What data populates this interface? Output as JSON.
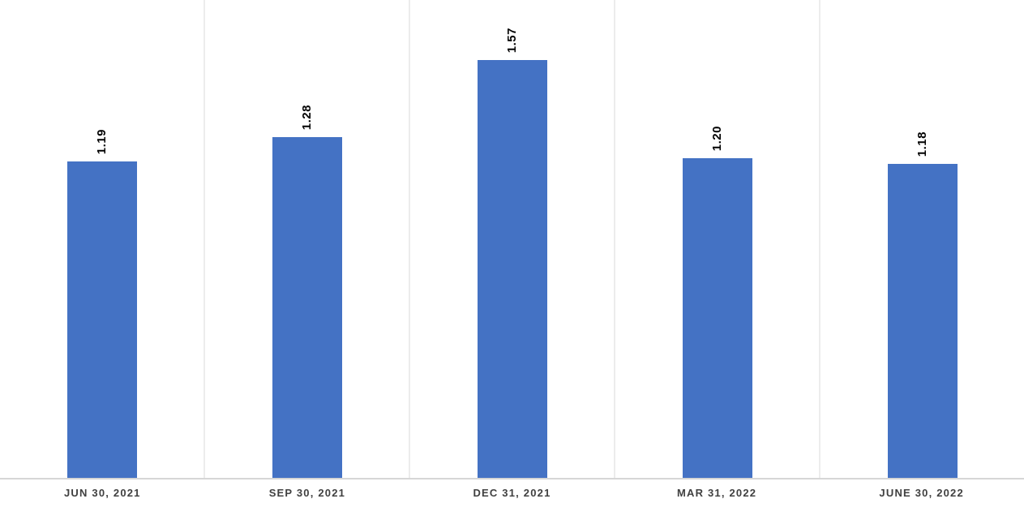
{
  "chart_data": {
    "type": "bar",
    "categories": [
      "JUN 30, 2021",
      "SEP 30, 2021",
      "DEC 31, 2021",
      "MAR 31, 2022",
      "JUNE 30, 2022"
    ],
    "values": [
      1.19,
      1.28,
      1.57,
      1.2,
      1.18
    ],
    "value_labels": [
      "1.19",
      "1.28",
      "1.57",
      "1.20",
      "1.18"
    ],
    "title": "",
    "xlabel": "",
    "ylabel": "",
    "ylim": [
      0,
      1.8
    ],
    "y_axis_visible": false,
    "grid": "vertical category dividers only",
    "legend_position": "none",
    "data_label_rotation": -90,
    "bar_color": "#4472C4",
    "divider_color": "#ececec",
    "baseline_color": "#d6d6d6",
    "data_label_color": "#000000",
    "axis_label_color": "#404040",
    "background_color": "#ffffff"
  }
}
